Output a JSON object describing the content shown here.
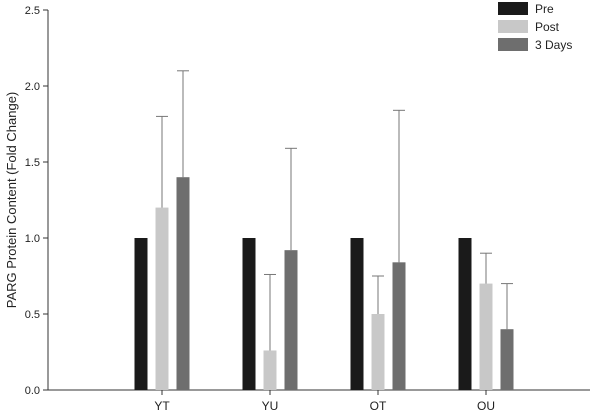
{
  "chart_data": {
    "type": "bar",
    "title": "",
    "xlabel": "",
    "ylabel": "PARG Protein Content (Fold Change)",
    "ylim": [
      0.0,
      2.5
    ],
    "yticks": [
      "0.0",
      "0.5",
      "1.0",
      "1.5",
      "2.0",
      "2.5"
    ],
    "grid": false,
    "legend_position": "top-right",
    "categories": [
      "YT",
      "YU",
      "OT",
      "OU"
    ],
    "series": [
      {
        "name": "Pre",
        "color": "#1a1a1a",
        "values": [
          1.0,
          1.0,
          1.0,
          1.0
        ],
        "errors": [
          0,
          0,
          0,
          0
        ]
      },
      {
        "name": "Post",
        "color": "#c8c8c8",
        "values": [
          1.2,
          0.26,
          0.5,
          0.7
        ],
        "errors": [
          0.6,
          0.5,
          0.25,
          0.2
        ]
      },
      {
        "name": "3 Days",
        "color": "#6e6e6e",
        "values": [
          1.4,
          0.92,
          0.84,
          0.4
        ],
        "errors": [
          0.7,
          0.67,
          1.0,
          0.3
        ]
      }
    ]
  }
}
